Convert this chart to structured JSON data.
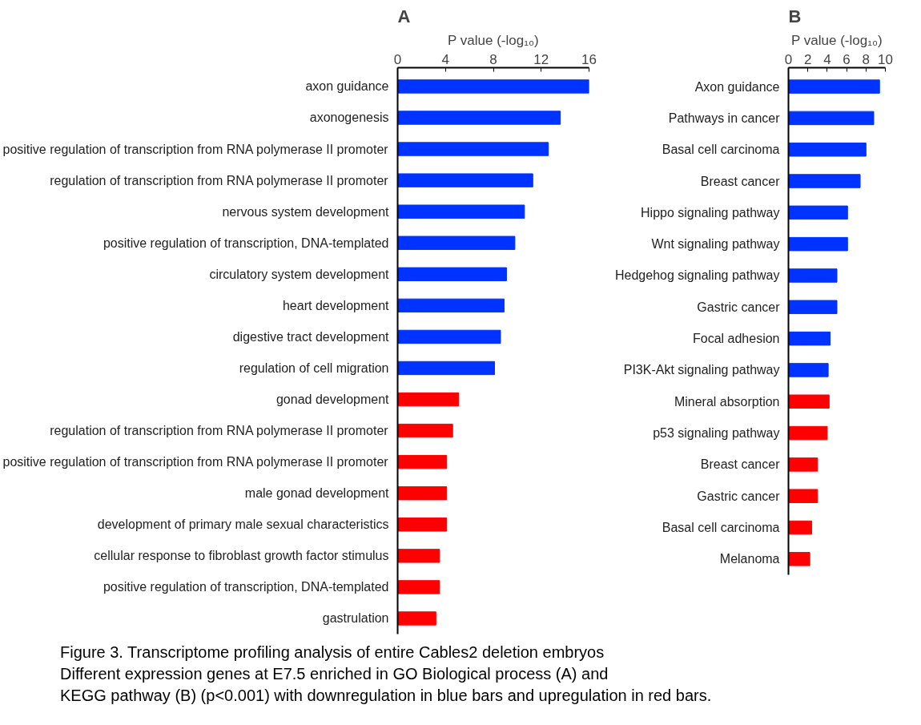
{
  "chart_data": [
    {
      "type": "bar",
      "orientation": "horizontal",
      "title": "A",
      "xlabel": "P value (-log₁₀)",
      "categories": [
        "axon guidance",
        "axonogenesis",
        "positive regulation of transcription from RNA polymerase II promoter",
        "regulation of transcription from RNA polymerase II promoter",
        "nervous system development",
        "positive regulation of transcription, DNA-templated",
        "circulatory system development",
        "heart development",
        "digestive tract development",
        "regulation of cell migration",
        "gonad development",
        "regulation of transcription from RNA polymerase II promoter",
        "positive regulation of transcription from RNA polymerase II promoter",
        "male gonad development",
        "development of primary male sexual characteristics",
        "cellular response to fibroblast growth factor stimulus",
        "positive regulation of transcription, DNA-templated",
        "gastrulation"
      ],
      "values": [
        16.0,
        13.6,
        12.6,
        11.3,
        10.6,
        9.8,
        9.1,
        8.9,
        8.6,
        8.1,
        5.1,
        4.6,
        4.1,
        4.1,
        4.1,
        3.5,
        3.5,
        3.2
      ],
      "colors": [
        "#0033ff",
        "#0033ff",
        "#0033ff",
        "#0033ff",
        "#0033ff",
        "#0033ff",
        "#0033ff",
        "#0033ff",
        "#0033ff",
        "#0033ff",
        "#ff0000",
        "#ff0000",
        "#ff0000",
        "#ff0000",
        "#ff0000",
        "#ff0000",
        "#ff0000",
        "#ff0000"
      ],
      "xlim": [
        0,
        16
      ],
      "xticks": [
        0,
        4,
        8,
        12,
        16
      ],
      "grid": false,
      "annotations": [
        "Figure 3. Transcriptome profiling analysis of entire Cables2 deletion embryos",
        "Different expression genes at E7.5 enriched in GO Biological process (A) and",
        "KEGG pathway (B) (p<0.001) with downregulation in blue bars and upregulation in red bars."
      ]
    },
    {
      "type": "bar",
      "orientation": "horizontal",
      "title": "B",
      "xlabel": "P value (-log₁₀)",
      "categories": [
        "Axon guidance",
        "Pathways in cancer",
        "Basal cell carcinoma",
        "Breast cancer",
        "Hippo signaling pathway",
        "Wnt signaling pathway",
        "Hedgehog signaling pathway",
        "Gastric cancer",
        "Focal adhesion",
        "PI3K-Akt signaling pathway",
        "Mineral absorption",
        "p53 signaling pathway",
        "Breast cancer",
        "Gastric cancer",
        "Basal cell carcinoma",
        "Melanoma"
      ],
      "values": [
        9.4,
        8.8,
        8.0,
        7.4,
        6.1,
        6.1,
        5.0,
        5.0,
        4.3,
        4.1,
        4.2,
        4.0,
        3.0,
        3.0,
        2.4,
        2.2
      ],
      "colors": [
        "#0033ff",
        "#0033ff",
        "#0033ff",
        "#0033ff",
        "#0033ff",
        "#0033ff",
        "#0033ff",
        "#0033ff",
        "#0033ff",
        "#0033ff",
        "#ff0000",
        "#ff0000",
        "#ff0000",
        "#ff0000",
        "#ff0000",
        "#ff0000"
      ],
      "xlim": [
        0,
        10
      ],
      "xticks": [
        0,
        2,
        4,
        6,
        8,
        10
      ],
      "grid": false
    }
  ]
}
